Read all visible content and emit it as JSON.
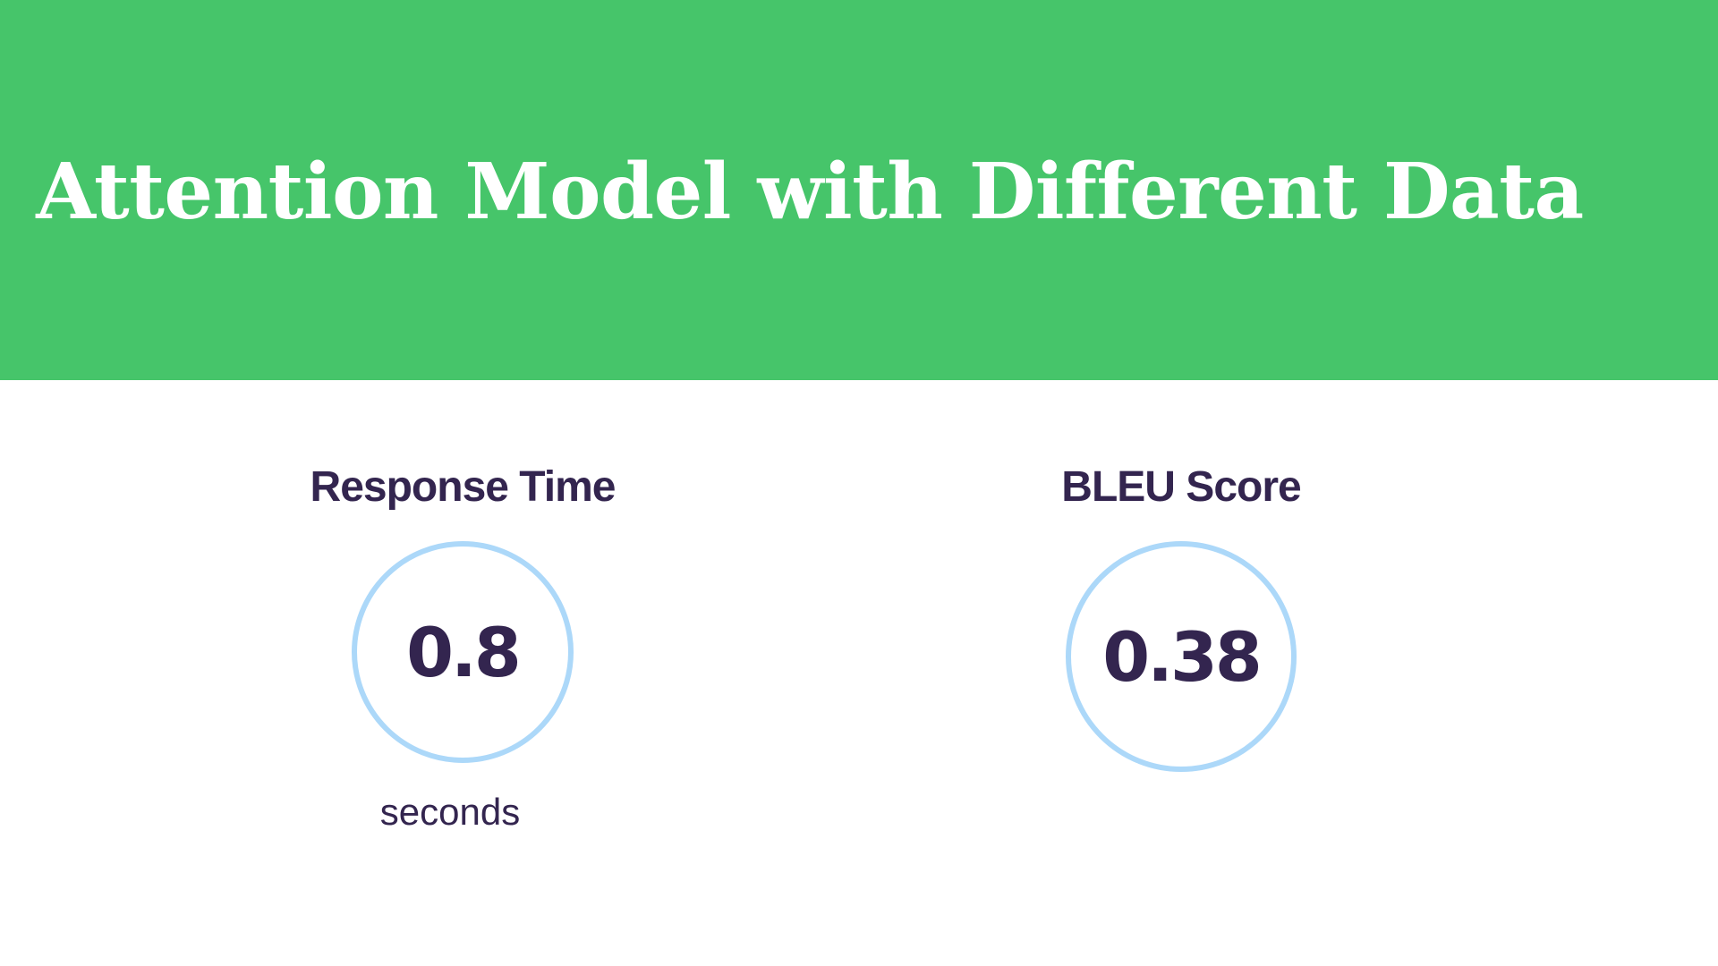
{
  "slide": {
    "title": "Attention Model with Different Data",
    "colors": {
      "banner": "#46c56a",
      "title_text": "#ffffff",
      "text": "#33254f",
      "ring": "#acd8f9"
    },
    "metrics": [
      {
        "label": "Response Time",
        "value": "0.8",
        "unit": "seconds"
      },
      {
        "label": "BLEU Score",
        "value": "0.38"
      }
    ]
  }
}
